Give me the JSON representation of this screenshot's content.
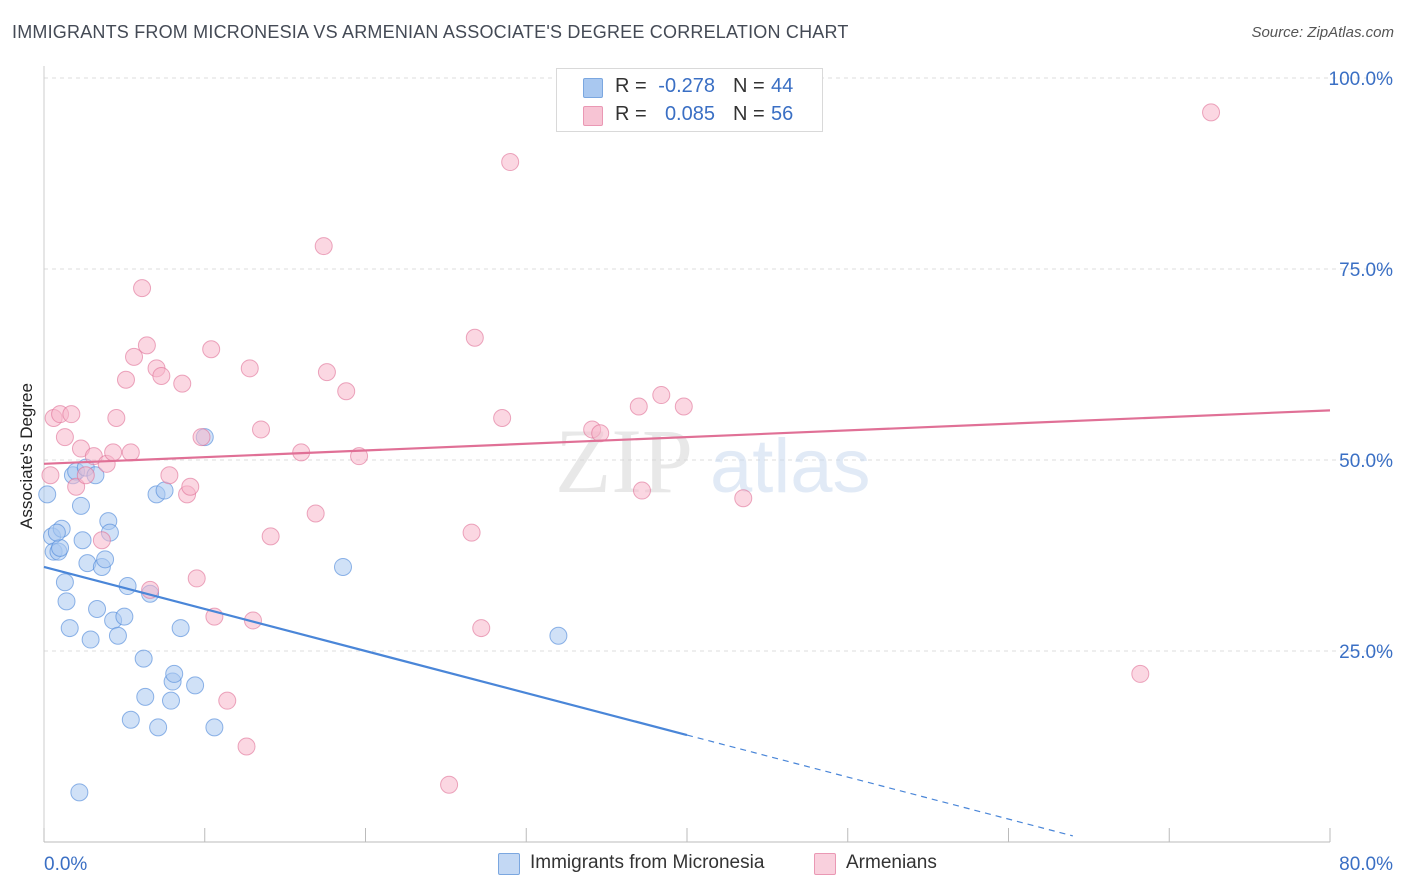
{
  "header": {
    "title": "IMMIGRANTS FROM MICRONESIA VS ARMENIAN ASSOCIATE'S DEGREE CORRELATION CHART",
    "source": "Source: ZipAtlas.com"
  },
  "watermark": {
    "zip": "ZIP",
    "atlas": "atlas"
  },
  "legend": {
    "rows": [
      {
        "r_label": "R =",
        "r_value": "-0.278",
        "n_label": "N =",
        "n_value": "44",
        "color": "#a9c8f0"
      },
      {
        "r_label": "R =",
        "r_value": "0.085",
        "n_label": "N =",
        "n_value": "56",
        "color": "#f7b6ca"
      }
    ]
  },
  "bottom_legend": [
    {
      "label": "Immigrants from Micronesia",
      "color": "#a9c8f0"
    },
    {
      "label": "Armenians",
      "color": "#f7b6ca"
    }
  ],
  "chart_data": {
    "type": "scatter",
    "title": "IMMIGRANTS FROM MICRONESIA VS ARMENIAN ASSOCIATE'S DEGREE CORRELATION CHART",
    "xlabel": "",
    "ylabel": "Associate's Degree",
    "xlim": [
      0,
      80
    ],
    "ylim": [
      0,
      105
    ],
    "x_tick_labels": [
      "0.0%",
      "80.0%"
    ],
    "y_ticks": [
      25,
      50,
      75,
      100
    ],
    "y_tick_labels": [
      "25.0%",
      "50.0%",
      "75.0%",
      "100.0%"
    ],
    "grid": true,
    "legend_position": "top-center",
    "series": [
      {
        "name": "Immigrants from Micronesia",
        "color": "#4a86d8",
        "fill": "#a9c8f0",
        "trend": {
          "x0": 0,
          "y0": 36,
          "x1": 40,
          "y1": 14.0,
          "dash_to_x": 64,
          "dash_to_y": 0.8
        },
        "points": [
          [
            0.2,
            45.5
          ],
          [
            0.5,
            40.0
          ],
          [
            0.6,
            38.0
          ],
          [
            0.9,
            38.0
          ],
          [
            1.0,
            38.5
          ],
          [
            1.1,
            41.0
          ],
          [
            1.3,
            34.0
          ],
          [
            1.4,
            31.5
          ],
          [
            1.6,
            28.0
          ],
          [
            1.8,
            48.0
          ],
          [
            2.0,
            48.5
          ],
          [
            2.2,
            6.5
          ],
          [
            2.3,
            44.0
          ],
          [
            2.4,
            39.5
          ],
          [
            2.6,
            49.0
          ],
          [
            2.7,
            36.5
          ],
          [
            2.9,
            26.5
          ],
          [
            3.2,
            48.0
          ],
          [
            3.3,
            30.5
          ],
          [
            3.6,
            36.0
          ],
          [
            3.8,
            37.0
          ],
          [
            4.0,
            42.0
          ],
          [
            4.1,
            40.5
          ],
          [
            4.3,
            29.0
          ],
          [
            4.6,
            27.0
          ],
          [
            5.0,
            29.5
          ],
          [
            5.2,
            33.5
          ],
          [
            5.4,
            16.0
          ],
          [
            6.2,
            24.0
          ],
          [
            6.3,
            19.0
          ],
          [
            6.6,
            32.5
          ],
          [
            7.1,
            15.0
          ],
          [
            7.0,
            45.5
          ],
          [
            7.5,
            46.0
          ],
          [
            7.9,
            18.5
          ],
          [
            8.0,
            21.0
          ],
          [
            8.1,
            22.0
          ],
          [
            8.5,
            28.0
          ],
          [
            9.4,
            20.5
          ],
          [
            10.0,
            53.0
          ],
          [
            10.6,
            15.0
          ],
          [
            18.6,
            36.0
          ],
          [
            32.0,
            27.0
          ],
          [
            0.8,
            40.5
          ]
        ]
      },
      {
        "name": "Armenians",
        "color": "#e07096",
        "fill": "#f7b6ca",
        "trend": {
          "x0": 0,
          "y0": 49.5,
          "x1": 80,
          "y1": 56.5
        },
        "points": [
          [
            0.4,
            48.0
          ],
          [
            0.6,
            55.5
          ],
          [
            1.0,
            56.0
          ],
          [
            1.3,
            53.0
          ],
          [
            1.7,
            56.0
          ],
          [
            2.0,
            46.5
          ],
          [
            2.3,
            51.5
          ],
          [
            2.6,
            48.0
          ],
          [
            3.1,
            50.5
          ],
          [
            3.6,
            39.5
          ],
          [
            3.9,
            49.5
          ],
          [
            4.3,
            51.0
          ],
          [
            4.5,
            55.5
          ],
          [
            5.1,
            60.5
          ],
          [
            5.4,
            51.0
          ],
          [
            5.6,
            63.5
          ],
          [
            6.1,
            72.5
          ],
          [
            6.4,
            65.0
          ],
          [
            6.6,
            33.0
          ],
          [
            7.0,
            62.0
          ],
          [
            7.3,
            61.0
          ],
          [
            7.8,
            48.0
          ],
          [
            8.6,
            60.0
          ],
          [
            8.9,
            45.5
          ],
          [
            9.1,
            46.5
          ],
          [
            9.5,
            34.5
          ],
          [
            9.8,
            53.0
          ],
          [
            10.4,
            64.5
          ],
          [
            10.6,
            29.5
          ],
          [
            11.4,
            18.5
          ],
          [
            12.6,
            12.5
          ],
          [
            12.8,
            62.0
          ],
          [
            13.0,
            29.0
          ],
          [
            13.5,
            54.0
          ],
          [
            14.1,
            40.0
          ],
          [
            16.0,
            51.0
          ],
          [
            16.9,
            43.0
          ],
          [
            17.4,
            78.0
          ],
          [
            17.6,
            61.5
          ],
          [
            18.8,
            59.0
          ],
          [
            19.6,
            50.5
          ],
          [
            25.2,
            7.5
          ],
          [
            26.6,
            40.5
          ],
          [
            26.8,
            66.0
          ],
          [
            27.2,
            28.0
          ],
          [
            28.5,
            55.5
          ],
          [
            29.0,
            89.0
          ],
          [
            34.1,
            54.0
          ],
          [
            34.6,
            53.5
          ],
          [
            37.0,
            57.0
          ],
          [
            37.2,
            46.0
          ],
          [
            38.4,
            58.5
          ],
          [
            39.8,
            57.0
          ],
          [
            43.5,
            45.0
          ],
          [
            68.2,
            22.0
          ],
          [
            72.6,
            95.5
          ]
        ]
      }
    ]
  }
}
